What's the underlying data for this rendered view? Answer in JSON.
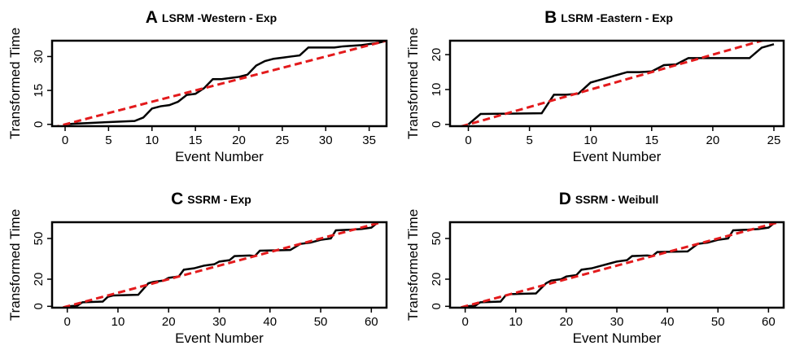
{
  "chart_data": [
    {
      "type": "line",
      "panel": "A",
      "title": "LSRM -Western - Exp",
      "x_label": "Event Number",
      "y_label": "Transformed Time",
      "xlim": [
        -1.5,
        37
      ],
      "ylim": [
        -0.8,
        37
      ],
      "xticks": [
        0,
        5,
        10,
        15,
        20,
        25,
        30,
        35
      ],
      "yticks": [
        0,
        15,
        30
      ],
      "series": [
        {
          "color": "#000000",
          "dashed": false,
          "x": [
            0,
            1,
            5,
            8,
            9,
            10,
            11,
            12,
            13,
            14,
            15,
            16,
            17,
            18,
            19,
            20,
            21,
            22,
            23,
            24,
            25,
            26,
            27,
            28,
            31,
            32,
            34,
            35,
            36,
            37
          ],
          "values": [
            0,
            0.3,
            1,
            1.5,
            3,
            7,
            8,
            8.5,
            10,
            13,
            13.5,
            16,
            20,
            20,
            20.5,
            21,
            22,
            26,
            28,
            29,
            29.5,
            30,
            30.5,
            34,
            34,
            34.5,
            35,
            35.5,
            36,
            37
          ]
        },
        {
          "color": "#e31a1c",
          "dashed": true,
          "x": [
            -1.5,
            37
          ],
          "values": [
            -1.5,
            37
          ]
        }
      ]
    },
    {
      "type": "line",
      "panel": "B",
      "title": "LSRM -Eastern - Exp",
      "x_label": "Event Number",
      "y_label": "Transformed Time",
      "xlim": [
        -1.5,
        25.8
      ],
      "ylim": [
        -0.5,
        24
      ],
      "xticks": [
        0,
        5,
        10,
        15,
        20,
        25
      ],
      "yticks": [
        0,
        10,
        20
      ],
      "series": [
        {
          "color": "#000000",
          "dashed": false,
          "x": [
            0,
            1,
            6,
            7,
            8,
            9,
            10,
            11,
            12,
            13,
            14,
            15,
            16,
            17,
            18,
            23,
            24,
            25
          ],
          "values": [
            0,
            3,
            3.2,
            8.5,
            8.5,
            8.8,
            12,
            13,
            14,
            15,
            15,
            15.2,
            17,
            17.2,
            19,
            19,
            22,
            23
          ]
        },
        {
          "color": "#e31a1c",
          "dashed": true,
          "x": [
            -1.5,
            25.8
          ],
          "values": [
            -1.5,
            25.8
          ]
        }
      ]
    },
    {
      "type": "line",
      "panel": "C",
      "title": "SSRM - Exp",
      "x_label": "Event Number",
      "y_label": "Transformed Time",
      "xlim": [
        -3,
        63
      ],
      "ylim": [
        -1,
        62
      ],
      "xticks": [
        0,
        10,
        20,
        30,
        40,
        50,
        60
      ],
      "yticks": [
        0,
        20,
        50
      ],
      "series": [
        {
          "color": "#000000",
          "dashed": false,
          "x": [
            0,
            2,
            3,
            7,
            8,
            9,
            14,
            16,
            17,
            19,
            20,
            22,
            23,
            25,
            27,
            29,
            30,
            32,
            33,
            36,
            37,
            38,
            44,
            46,
            48,
            50,
            52,
            53,
            56,
            58,
            60,
            61
          ],
          "values": [
            0,
            0.5,
            3,
            3.5,
            7,
            8,
            8.5,
            17,
            18,
            19,
            21,
            22,
            27,
            28,
            30,
            31,
            33,
            34,
            37,
            37.5,
            37,
            41,
            41.5,
            46,
            47,
            49,
            50,
            56,
            56.5,
            57,
            58,
            61
          ]
        },
        {
          "color": "#e31a1c",
          "dashed": true,
          "x": [
            -3,
            63
          ],
          "values": [
            -3,
            63
          ]
        }
      ]
    },
    {
      "type": "line",
      "panel": "D",
      "title": "SSRM - Weibull",
      "x_label": "Event Number",
      "y_label": "Transformed Time",
      "xlim": [
        -3,
        63
      ],
      "ylim": [
        -1,
        62
      ],
      "xticks": [
        0,
        10,
        20,
        30,
        40,
        50,
        60
      ],
      "yticks": [
        0,
        20,
        50
      ],
      "series": [
        {
          "color": "#000000",
          "dashed": false,
          "x": [
            0,
            2,
            3,
            7,
            8,
            9,
            14,
            16,
            17,
            19,
            20,
            22,
            23,
            25,
            27,
            29,
            30,
            32,
            33,
            36,
            37,
            38,
            44,
            46,
            48,
            50,
            52,
            53,
            56,
            58,
            60,
            61
          ],
          "values": [
            0,
            0.5,
            3,
            3.5,
            8,
            9,
            9.5,
            17,
            19,
            20,
            22,
            23,
            27,
            28,
            30,
            32,
            33,
            34,
            37,
            37.5,
            37,
            40,
            40.5,
            46,
            47,
            49,
            50,
            56,
            56.5,
            57,
            58,
            61
          ]
        },
        {
          "color": "#e31a1c",
          "dashed": true,
          "x": [
            -3,
            63
          ],
          "values": [
            -3,
            63
          ]
        }
      ]
    }
  ]
}
